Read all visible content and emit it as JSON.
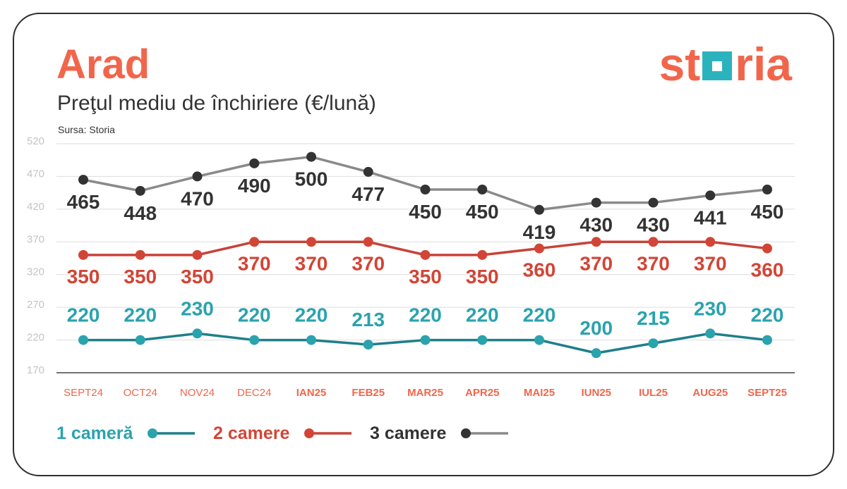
{
  "header": {
    "title": "Arad",
    "source": "Sursa: Storia"
  },
  "logo": {
    "prefix": "st",
    "suffix": "ria"
  },
  "colors": {
    "brand_coral": "#f1664b",
    "brand_teal": "#2bb3bd",
    "grid": "#dddddd",
    "axis": "#444444",
    "tick_label": "#c4c4c4"
  },
  "chart_data": {
    "type": "line",
    "title": "Preţul mediu de închiriere (€/lună)",
    "xlabel": "",
    "ylabel": "",
    "categories": [
      "SEPT24",
      "OCT24",
      "NOV24",
      "DEC24",
      "IAN25",
      "FEB25",
      "MAR25",
      "APR25",
      "MAI25",
      "IUN25",
      "IUL25",
      "AUG25",
      "SEPT25"
    ],
    "ylim": [
      170,
      520
    ],
    "yticks": [
      520,
      470,
      420,
      370,
      320,
      270,
      220,
      170
    ],
    "grid": true,
    "legend": "bottom-left",
    "series": [
      {
        "name": "1 cameră",
        "color": "#2aa3ad",
        "line_color": "#1f7f8a",
        "values": [
          220,
          220,
          230,
          220,
          220,
          213,
          220,
          220,
          220,
          200,
          215,
          230,
          220
        ]
      },
      {
        "name": "2 camere",
        "color": "#d24536",
        "line_color": "#c6433a",
        "values": [
          350,
          350,
          350,
          370,
          370,
          370,
          350,
          350,
          360,
          370,
          370,
          370,
          360
        ]
      },
      {
        "name": "3 camere",
        "color": "#333333",
        "line_color": "#8a8a8a",
        "values": [
          465,
          448,
          470,
          490,
          500,
          477,
          450,
          450,
          419,
          430,
          430,
          441,
          450
        ]
      }
    ]
  }
}
